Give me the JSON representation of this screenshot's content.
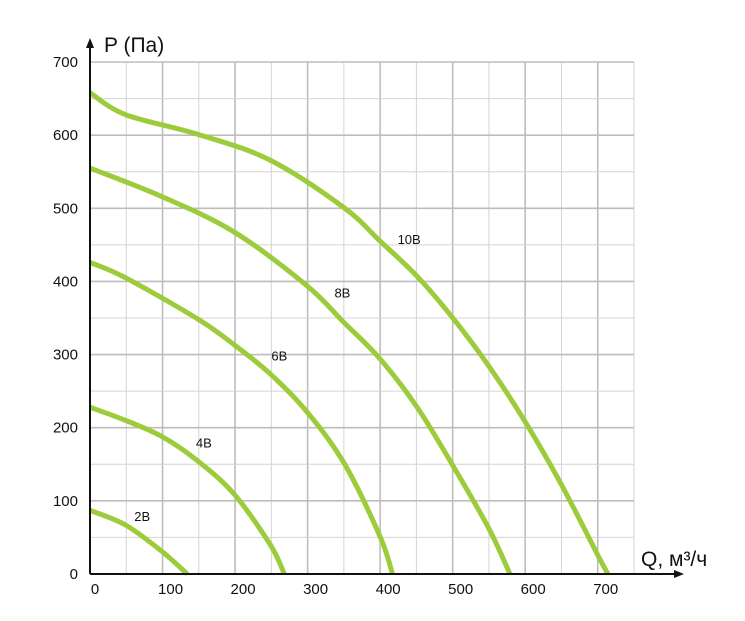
{
  "chart_data": {
    "type": "line",
    "xlabel": "Q, м³/ч",
    "ylabel": "P (Па)",
    "xlim": [
      0,
      750
    ],
    "ylim": [
      0,
      700
    ],
    "xticks": [
      "0",
      "100",
      "200",
      "300",
      "400",
      "500",
      "600",
      "700"
    ],
    "yticks": [
      "0",
      "100",
      "200",
      "300",
      "400",
      "500",
      "600",
      "700"
    ],
    "grid": true,
    "line_color": "#9ccc3c",
    "series": [
      {
        "name": "10В",
        "label_at": [
          440,
          458
        ],
        "x": [
          0,
          49,
          149,
          248,
          350,
          400,
          451,
          501,
          550,
          600,
          650,
          700,
          714
        ],
        "y": [
          658,
          628,
          601,
          566,
          501,
          455,
          407,
          349,
          284,
          208,
          122,
          26,
          0
        ]
      },
      {
        "name": "8В",
        "label_at": [
          348,
          385
        ],
        "x": [
          0,
          99,
          198,
          298,
          350,
          400,
          451,
          501,
          550,
          579
        ],
        "y": [
          555,
          516,
          468,
          395,
          344,
          294,
          228,
          147,
          62,
          0
        ]
      },
      {
        "name": "6В",
        "label_at": [
          261,
          299
        ],
        "x": [
          0,
          49,
          148,
          198,
          248,
          298,
          350,
          400,
          417
        ],
        "y": [
          426,
          405,
          349,
          314,
          274,
          223,
          152,
          51,
          0
        ]
      },
      {
        "name": "4В",
        "label_at": [
          157,
          180
        ],
        "x": [
          0,
          49,
          99,
          148,
          198,
          248,
          268
        ],
        "y": [
          228,
          210,
          188,
          155,
          110,
          41,
          0
        ]
      },
      {
        "name": "2В",
        "label_at": [
          72,
          79
        ],
        "x": [
          0,
          49,
          99,
          134
        ],
        "y": [
          87,
          67,
          31,
          0
        ]
      }
    ]
  }
}
